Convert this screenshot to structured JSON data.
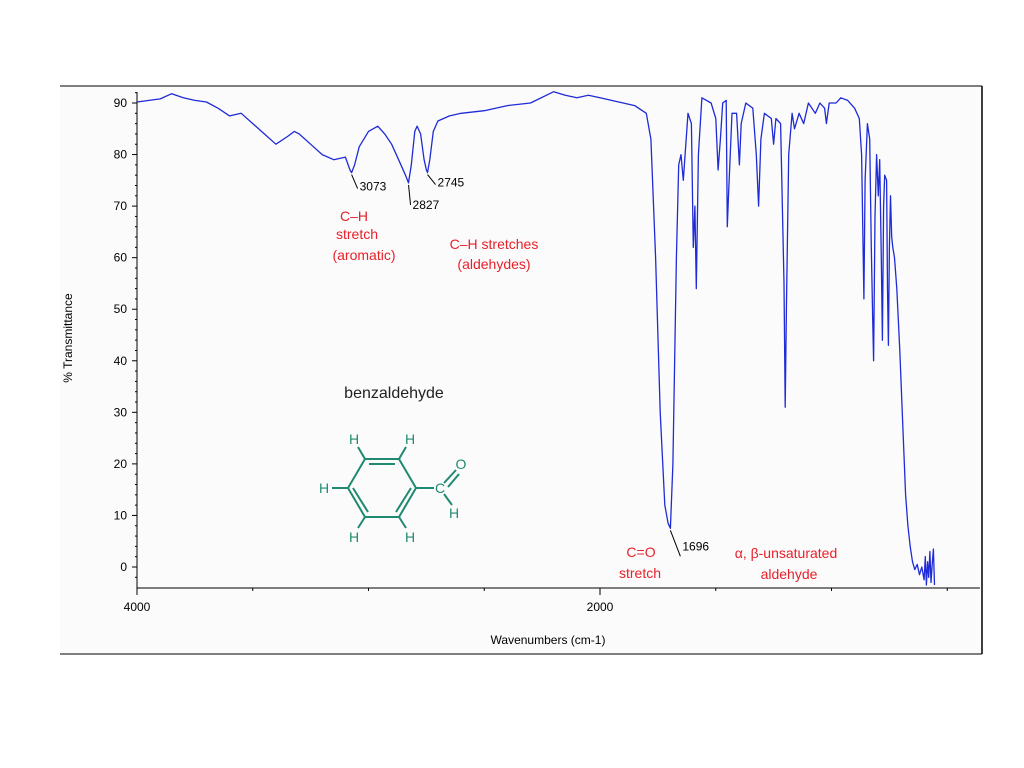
{
  "chart_data": {
    "type": "line",
    "title": "benzaldehyde",
    "xlabel": "Wavenumbers (cm-1)",
    "ylabel": "% Transmittance",
    "xlim": [
      4000,
      400
    ],
    "ylim": [
      -4,
      93
    ],
    "x_reversed": true,
    "grid": false,
    "x_ticks": [
      4000,
      2000
    ],
    "y_ticks": [
      0,
      10,
      20,
      30,
      40,
      50,
      60,
      70,
      80,
      90
    ],
    "line_color": "#1f2bd6",
    "series": [
      {
        "name": "",
        "points": [
          [
            4000,
            90.2
          ],
          [
            3900,
            90.8
          ],
          [
            3850,
            91.8
          ],
          [
            3800,
            91.0
          ],
          [
            3750,
            90.5
          ],
          [
            3700,
            90.2
          ],
          [
            3650,
            89.0
          ],
          [
            3600,
            87.5
          ],
          [
            3550,
            88.0
          ],
          [
            3500,
            86.0
          ],
          [
            3450,
            84.0
          ],
          [
            3400,
            82.0
          ],
          [
            3350,
            83.5
          ],
          [
            3320,
            84.5
          ],
          [
            3300,
            84.0
          ],
          [
            3250,
            82.0
          ],
          [
            3200,
            80.0
          ],
          [
            3150,
            79.0
          ],
          [
            3100,
            79.5
          ],
          [
            3080,
            77.0
          ],
          [
            3073,
            76.5
          ],
          [
            3060,
            78.0
          ],
          [
            3040,
            81.5
          ],
          [
            3000,
            84.5
          ],
          [
            2960,
            85.5
          ],
          [
            2930,
            84.0
          ],
          [
            2900,
            82.0
          ],
          [
            2870,
            79.0
          ],
          [
            2840,
            76.0
          ],
          [
            2827,
            74.5
          ],
          [
            2815,
            78.0
          ],
          [
            2800,
            84.5
          ],
          [
            2790,
            85.5
          ],
          [
            2775,
            84.0
          ],
          [
            2760,
            79.0
          ],
          [
            2750,
            77.0
          ],
          [
            2745,
            76.5
          ],
          [
            2735,
            79.0
          ],
          [
            2720,
            84.5
          ],
          [
            2700,
            86.5
          ],
          [
            2650,
            87.5
          ],
          [
            2600,
            88.0
          ],
          [
            2500,
            88.5
          ],
          [
            2400,
            89.5
          ],
          [
            2300,
            90.0
          ],
          [
            2200,
            92.2
          ],
          [
            2150,
            91.5
          ],
          [
            2100,
            91.0
          ],
          [
            2050,
            91.5
          ],
          [
            2000,
            91.0
          ],
          [
            1950,
            90.5
          ],
          [
            1900,
            90.0
          ],
          [
            1850,
            89.5
          ],
          [
            1800,
            88.0
          ],
          [
            1780,
            83.0
          ],
          [
            1760,
            60.0
          ],
          [
            1740,
            30.0
          ],
          [
            1720,
            12.0
          ],
          [
            1706,
            8.5
          ],
          [
            1696,
            7.5
          ],
          [
            1685,
            20.0
          ],
          [
            1670,
            60.0
          ],
          [
            1660,
            78.0
          ],
          [
            1650,
            80.0
          ],
          [
            1640,
            75.0
          ],
          [
            1620,
            88.0
          ],
          [
            1605,
            86.0
          ],
          [
            1597,
            62.0
          ],
          [
            1590,
            70.0
          ],
          [
            1584,
            54.0
          ],
          [
            1575,
            80.0
          ],
          [
            1560,
            91.0
          ],
          [
            1520,
            90.0
          ],
          [
            1500,
            87.0
          ],
          [
            1490,
            77.0
          ],
          [
            1480,
            83.0
          ],
          [
            1470,
            90.0
          ],
          [
            1455,
            90.5
          ],
          [
            1450,
            66.0
          ],
          [
            1445,
            72.0
          ],
          [
            1430,
            88.0
          ],
          [
            1410,
            88.0
          ],
          [
            1398,
            78.0
          ],
          [
            1390,
            86.0
          ],
          [
            1370,
            90.0
          ],
          [
            1340,
            89.0
          ],
          [
            1325,
            80.0
          ],
          [
            1315,
            70.0
          ],
          [
            1305,
            83.0
          ],
          [
            1290,
            88.0
          ],
          [
            1260,
            87.0
          ],
          [
            1250,
            82.0
          ],
          [
            1240,
            87.0
          ],
          [
            1220,
            86.0
          ],
          [
            1205,
            55.0
          ],
          [
            1200,
            31.0
          ],
          [
            1195,
            50.0
          ],
          [
            1185,
            80.0
          ],
          [
            1170,
            88.0
          ],
          [
            1160,
            85.0
          ],
          [
            1140,
            88.0
          ],
          [
            1120,
            86.0
          ],
          [
            1100,
            90.0
          ],
          [
            1070,
            88.0
          ],
          [
            1050,
            90.0
          ],
          [
            1030,
            89.0
          ],
          [
            1022,
            86.0
          ],
          [
            1010,
            90.0
          ],
          [
            980,
            90.0
          ],
          [
            960,
            91.0
          ],
          [
            930,
            90.5
          ],
          [
            900,
            89.0
          ],
          [
            880,
            87.0
          ],
          [
            870,
            80.0
          ],
          [
            860,
            52.0
          ],
          [
            855,
            75.0
          ],
          [
            845,
            86.0
          ],
          [
            835,
            83.0
          ],
          [
            828,
            62.0
          ],
          [
            822,
            48.0
          ],
          [
            818,
            40.0
          ],
          [
            812,
            68.0
          ],
          [
            805,
            80.0
          ],
          [
            798,
            72.0
          ],
          [
            792,
            79.0
          ],
          [
            785,
            60.0
          ],
          [
            780,
            44.0
          ],
          [
            775,
            70.0
          ],
          [
            770,
            76.0
          ],
          [
            762,
            75.0
          ],
          [
            758,
            54.0
          ],
          [
            754,
            43.0
          ],
          [
            750,
            62.0
          ],
          [
            745,
            72.0
          ],
          [
            740,
            64.0
          ],
          [
            735,
            62.0
          ],
          [
            728,
            60.0
          ],
          [
            718,
            54.0
          ],
          [
            705,
            42.0
          ],
          [
            690,
            25.0
          ],
          [
            680,
            14.0
          ],
          [
            670,
            8.0
          ],
          [
            660,
            4.0
          ],
          [
            650,
            1.0
          ],
          [
            640,
            -0.5
          ],
          [
            630,
            0.5
          ],
          [
            620,
            -1.5
          ],
          [
            610,
            0.0
          ],
          [
            600,
            -2.5
          ],
          [
            595,
            2.0
          ],
          [
            590,
            -3.5
          ],
          [
            585,
            1.0
          ],
          [
            580,
            -2.0
          ],
          [
            575,
            3.0
          ],
          [
            570,
            -3.0
          ],
          [
            565,
            0.5
          ],
          [
            560,
            3.5
          ],
          [
            555,
            -3.5
          ]
        ]
      }
    ],
    "annotations": [
      {
        "x": 3073,
        "y": 76.5,
        "text": "3073"
      },
      {
        "x": 2827,
        "y": 74.5,
        "text": "2827"
      },
      {
        "x": 2745,
        "y": 76.5,
        "text": "2745"
      },
      {
        "x": 1696,
        "y": 7.5,
        "text": "1696"
      }
    ]
  },
  "labels": {
    "ch_aromatic_1": "C–H",
    "ch_aromatic_2": "stretch",
    "ch_aromatic_3": "(aromatic)",
    "ch_aldehyde_1": "C–H stretches",
    "ch_aldehyde_2": "(aldehydes)",
    "co_1": "C=O",
    "co_2": "stretch",
    "ab_1": "α,  β-unsaturated",
    "ab_2": "aldehyde"
  },
  "molecule": {
    "h_top_left": "H",
    "h_top_right": "H",
    "h_left": "H",
    "h_bottom_left": "H",
    "h_bottom_right": "H",
    "carbon": "C",
    "oxygen": "O",
    "h_aldehyde": "H"
  },
  "colors": {
    "annotation_red": "#e8202a",
    "molecule_green": "#1f8a70",
    "axis": "#000000"
  }
}
